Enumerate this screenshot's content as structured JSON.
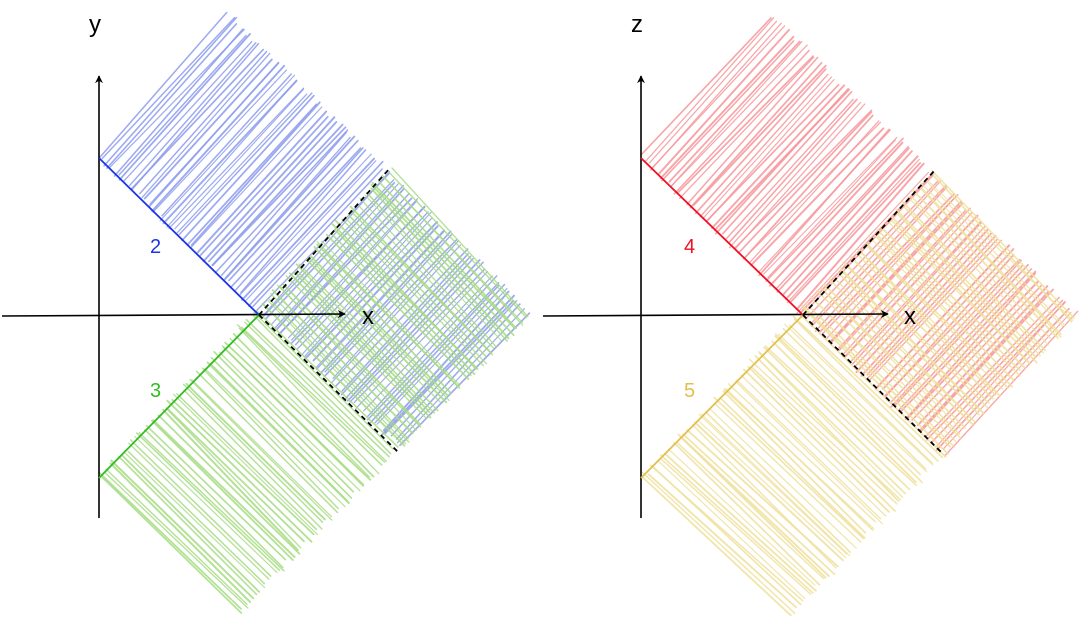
{
  "panels": [
    {
      "id": "left",
      "vertical_axis_label": "y",
      "horizontal_axis_label": "x",
      "upper_boundary": {
        "label": "2",
        "color": "#1a35e6"
      },
      "lower_boundary": {
        "label": "3",
        "color": "#33bb22"
      },
      "upper_region_color": "#8c9bec",
      "lower_region_color": "#a6dc82"
    },
    {
      "id": "right",
      "vertical_axis_label": "z",
      "horizontal_axis_label": "x",
      "upper_boundary": {
        "label": "4",
        "color": "#ee1122"
      },
      "lower_boundary": {
        "label": "5",
        "color": "#e1c04e"
      },
      "upper_region_color": "#f7959a",
      "lower_region_color": "#efe09c"
    }
  ],
  "colors": {
    "axis": "#000000",
    "dashed": "#000000",
    "background": "#ffffff"
  }
}
